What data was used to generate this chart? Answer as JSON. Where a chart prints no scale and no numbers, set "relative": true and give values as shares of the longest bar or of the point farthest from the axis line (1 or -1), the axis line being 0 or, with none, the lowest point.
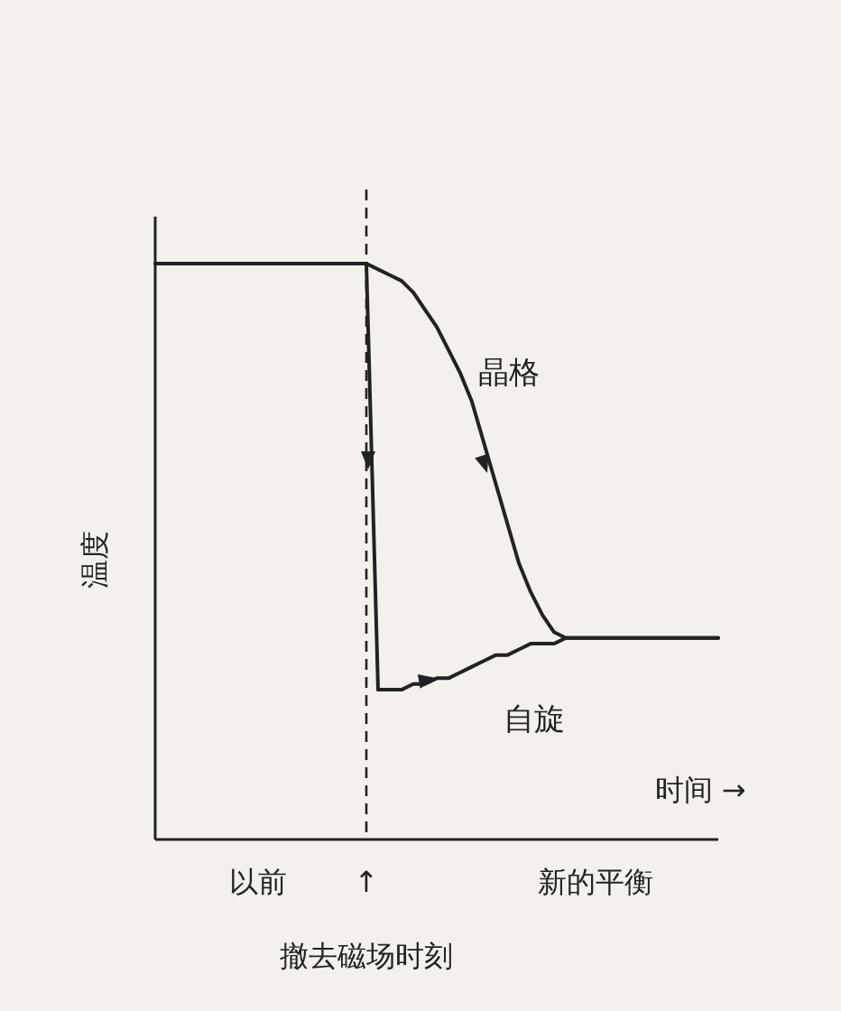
{
  "chart_data": {
    "type": "line",
    "relative": true,
    "xlabel": "时间 →",
    "ylabel": "温度",
    "categories": [
      null,
      null,
      null,
      null,
      null,
      null,
      null,
      null,
      null,
      null,
      null,
      null,
      null,
      null,
      null,
      null,
      null,
      null,
      null,
      null,
      null,
      null,
      null,
      null,
      null,
      null,
      null,
      null,
      null,
      null,
      null,
      null,
      null,
      null,
      null,
      null,
      null,
      null,
      null,
      null,
      null,
      null,
      null,
      null,
      null,
      null,
      null,
      null,
      null
    ],
    "series": [
      {
        "name": "晶格",
        "color": "#222222",
        "values": [
          1,
          1,
          1,
          1,
          1,
          1,
          1,
          1,
          1,
          1,
          1,
          1,
          1,
          1,
          1,
          1,
          1,
          1,
          1,
          0.99,
          0.98,
          0.97,
          0.95,
          0.92,
          0.89,
          0.85,
          0.81,
          0.76,
          0.69,
          0.62,
          0.55,
          0.48,
          0.43,
          0.39,
          0.36,
          0.35,
          0.35,
          0.35,
          0.35,
          0.35,
          0.35,
          0.35,
          0.35,
          0.35,
          0.35,
          0.35,
          0.35,
          0.35,
          0.35
        ]
      },
      {
        "name": "自旋",
        "color": "#222222",
        "values": [
          1,
          1,
          1,
          1,
          1,
          1,
          1,
          1,
          1,
          1,
          1,
          1,
          1,
          1,
          1,
          1,
          1,
          1,
          1,
          0.26,
          0.26,
          0.26,
          0.27,
          0.27,
          0.28,
          0.28,
          0.29,
          0.3,
          0.31,
          0.32,
          0.32,
          0.33,
          0.34,
          0.34,
          0.34,
          0.35,
          0.35,
          0.35,
          0.35,
          0.35,
          0.35,
          0.35,
          0.35,
          0.35,
          0.35,
          0.35,
          0.35,
          0.35,
          0.35
        ]
      }
    ],
    "annotations": [
      "以前",
      "↑",
      "新的平衡",
      "撤去磁场时刻"
    ],
    "legend": false,
    "grid": false,
    "marker": "none",
    "line_style": "solid"
  }
}
